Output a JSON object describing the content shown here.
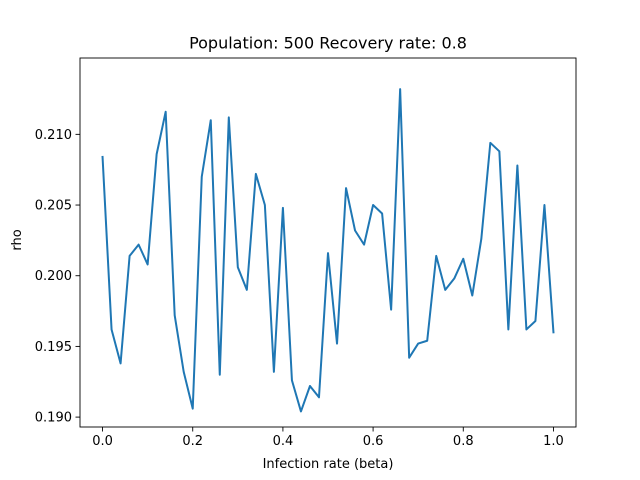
{
  "chart_data": {
    "type": "line",
    "title": "Population: 500 Recovery rate: 0.8",
    "xlabel": "Infection rate (beta)",
    "ylabel": "rho",
    "xlim": [
      -0.05,
      1.05
    ],
    "ylim": [
      0.1893,
      0.2154
    ],
    "xticks": [
      0.0,
      0.2,
      0.4,
      0.6,
      0.8,
      1.0
    ],
    "xtick_labels": [
      "0.0",
      "0.2",
      "0.4",
      "0.6",
      "0.8",
      "1.0"
    ],
    "yticks": [
      0.19,
      0.195,
      0.2,
      0.205,
      0.21
    ],
    "ytick_labels": [
      "0.190",
      "0.195",
      "0.200",
      "0.205",
      "0.210"
    ],
    "grid": false,
    "series": [
      {
        "color": "#1f77b4",
        "x": [
          0.0,
          0.02,
          0.04,
          0.06,
          0.08,
          0.1,
          0.12,
          0.14,
          0.16,
          0.18,
          0.2,
          0.22,
          0.24,
          0.26,
          0.28,
          0.3,
          0.32,
          0.34,
          0.36,
          0.38,
          0.4,
          0.42,
          0.44,
          0.46,
          0.48,
          0.5,
          0.52,
          0.54,
          0.56,
          0.58,
          0.6,
          0.62,
          0.64,
          0.66,
          0.68,
          0.7,
          0.72,
          0.74,
          0.76,
          0.78,
          0.8,
          0.82,
          0.84,
          0.86,
          0.88,
          0.9,
          0.92,
          0.94,
          0.96,
          0.98,
          1.0
        ],
        "y": [
          0.2084,
          0.1962,
          0.1938,
          0.2014,
          0.2022,
          0.2008,
          0.2086,
          0.2116,
          0.1972,
          0.1932,
          0.1906,
          0.207,
          0.211,
          0.193,
          0.2112,
          0.2006,
          0.199,
          0.2072,
          0.205,
          0.1932,
          0.2048,
          0.1926,
          0.1904,
          0.1922,
          0.1914,
          0.2016,
          0.1952,
          0.2062,
          0.2032,
          0.2022,
          0.205,
          0.2044,
          0.1976,
          0.2132,
          0.1942,
          0.1952,
          0.1954,
          0.2014,
          0.199,
          0.1998,
          0.2012,
          0.1986,
          0.2026,
          0.2094,
          0.2088,
          0.1962,
          0.2078,
          0.1962,
          0.1968,
          0.205,
          0.196
        ]
      }
    ]
  }
}
